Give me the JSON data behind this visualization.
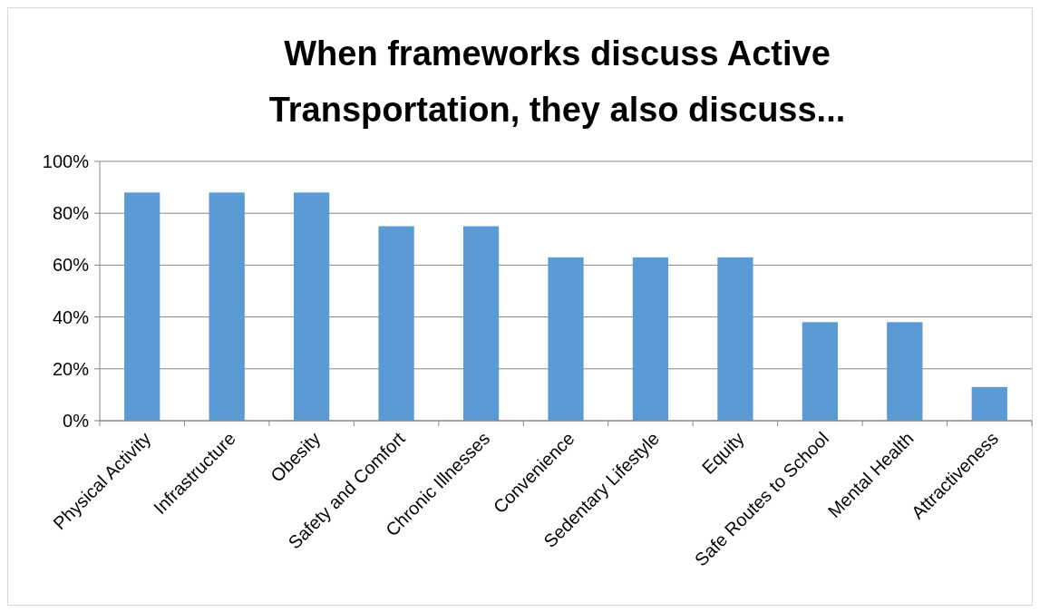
{
  "chart_data": {
    "type": "bar",
    "title": "When frameworks discuss Active Transportation, they also discuss...",
    "categories": [
      "Physical Activity",
      "Infrastructure",
      "Obesity",
      "Safety and Comfort",
      "Chronic Illnesses",
      "Convenience",
      "Sedentary Lifestyle",
      "Equity",
      "Safe Routes to School",
      "Mental Health",
      "Attractiveness"
    ],
    "values": [
      88,
      88,
      88,
      75,
      75,
      63,
      63,
      63,
      38,
      38,
      13
    ],
    "color": "#5b9bd5",
    "ylim": [
      0,
      100
    ],
    "yticks": [
      {
        "value": 0,
        "label": "0%"
      },
      {
        "value": 20,
        "label": "20%"
      },
      {
        "value": 40,
        "label": "40%"
      },
      {
        "value": 60,
        "label": "60%"
      },
      {
        "value": 80,
        "label": "80%"
      },
      {
        "value": 100,
        "label": "100%"
      }
    ],
    "grid": "y"
  }
}
